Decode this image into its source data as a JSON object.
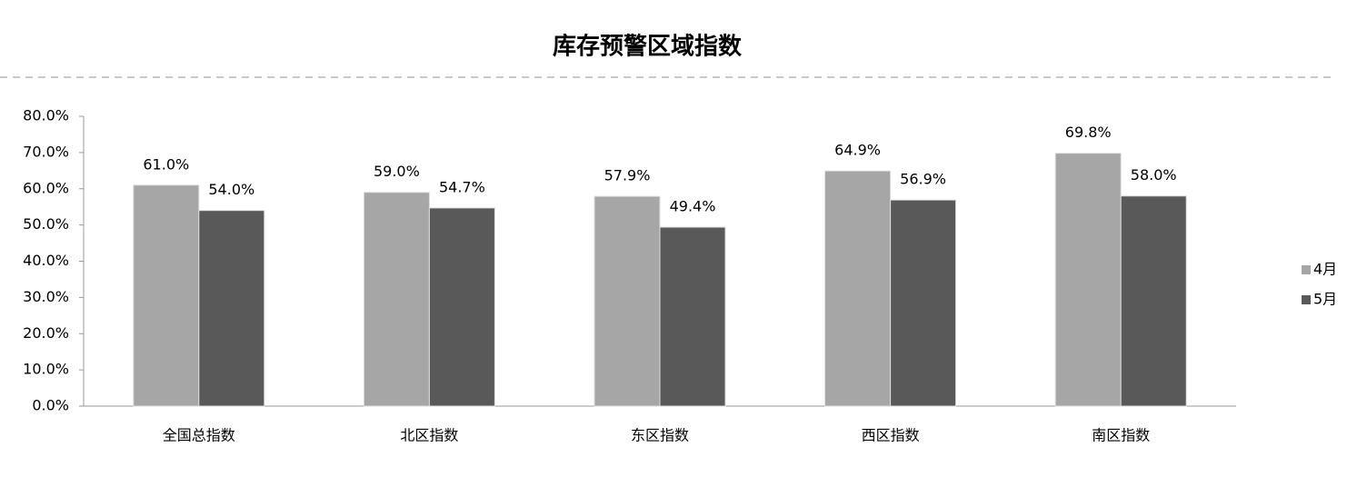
{
  "chart_data": {
    "type": "bar",
    "title": "库存预警区域指数",
    "categories": [
      "全国总指数",
      "北区指数",
      "东区指数",
      "西区指数",
      "南区指数"
    ],
    "series": [
      {
        "name": "4月",
        "color": "#a6a6a6",
        "values": [
          61.0,
          59.0,
          57.9,
          64.9,
          69.8
        ],
        "value_labels": [
          "61.0%",
          "59.0%",
          "57.9%",
          "64.9%",
          "69.8%"
        ]
      },
      {
        "name": "5月",
        "color": "#595959",
        "values": [
          54.0,
          54.7,
          49.4,
          56.9,
          58.0
        ],
        "value_labels": [
          "54.0%",
          "54.7%",
          "49.4%",
          "56.9%",
          "58.0%"
        ]
      }
    ],
    "ylim": [
      0,
      80
    ],
    "yticks": [
      {
        "value": 0,
        "label": "0.0%"
      },
      {
        "value": 10,
        "label": "10.0%"
      },
      {
        "value": 20,
        "label": "20.0%"
      },
      {
        "value": 30,
        "label": "30.0%"
      },
      {
        "value": 40,
        "label": "40.0%"
      },
      {
        "value": 50,
        "label": "50.0%"
      },
      {
        "value": 60,
        "label": "60.0%"
      },
      {
        "value": 70,
        "label": "70.0%"
      },
      {
        "value": 80,
        "label": "80.0%"
      }
    ],
    "grid": false,
    "legend": "right"
  }
}
